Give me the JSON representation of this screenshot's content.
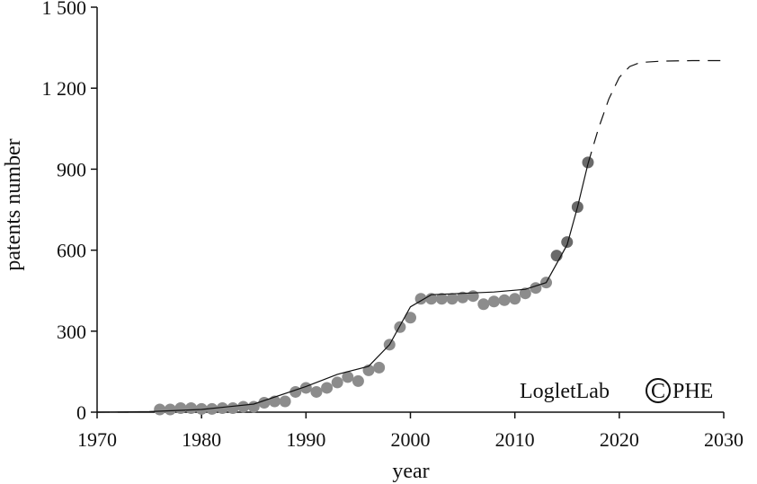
{
  "chart_data": {
    "type": "scatter",
    "title": "",
    "xlabel": "year",
    "ylabel": "patents number",
    "xlim": [
      1970,
      2030
    ],
    "ylim": [
      0,
      1500
    ],
    "xticks": [
      1970,
      1980,
      1990,
      2000,
      2010,
      2020,
      2030
    ],
    "xtick_labels": [
      "1970",
      "1980",
      "1990",
      "2000",
      "2010",
      "2020",
      "2030"
    ],
    "yticks": [
      0,
      300,
      600,
      900,
      1200,
      1500
    ],
    "ytick_labels": [
      "0",
      "300",
      "600",
      "900",
      "1 200",
      "1 500"
    ],
    "grid": false,
    "watermark": {
      "text_left": "LogletLab",
      "symbol": "C",
      "text_right": "PHE"
    },
    "series": [
      {
        "kind": "points",
        "x": [
          1976,
          1977,
          1978,
          1979,
          1980,
          1981,
          1982,
          1983,
          1984,
          1985,
          1986,
          1987,
          1988,
          1989,
          1990,
          1991,
          1992,
          1993,
          1994,
          1995,
          1996,
          1997,
          1998,
          1999,
          2000,
          2001,
          2002,
          2003,
          2004,
          2005,
          2006,
          2007,
          2008,
          2009,
          2010,
          2011,
          2012,
          2013,
          2014,
          2015,
          2016,
          2017
        ],
        "y": [
          10,
          10,
          15,
          15,
          12,
          12,
          15,
          15,
          20,
          20,
          35,
          40,
          40,
          75,
          90,
          75,
          90,
          110,
          130,
          115,
          155,
          165,
          250,
          315,
          350,
          420,
          420,
          420,
          420,
          425,
          430,
          400,
          410,
          415,
          420,
          440,
          460,
          480,
          580,
          630,
          760,
          925
        ]
      },
      {
        "kind": "fit",
        "x": [
          1970,
          1975,
          1980,
          1985,
          1990,
          1993,
          1996,
          1998,
          2000,
          2002,
          2005,
          2008,
          2011,
          2013,
          2015,
          2016,
          2017
        ],
        "y": [
          0,
          2,
          10,
          30,
          95,
          140,
          170,
          250,
          390,
          435,
          440,
          445,
          455,
          480,
          620,
          760,
          920
        ]
      },
      {
        "kind": "projection",
        "x": [
          2017,
          2018,
          2019,
          2020,
          2021,
          2022,
          2024,
          2027,
          2030
        ],
        "y": [
          920,
          1050,
          1160,
          1240,
          1280,
          1295,
          1300,
          1302,
          1302
        ]
      },
      {
        "kind": "projection-low",
        "x": [
          1970,
          1973
        ],
        "y": [
          0,
          0
        ]
      }
    ]
  }
}
